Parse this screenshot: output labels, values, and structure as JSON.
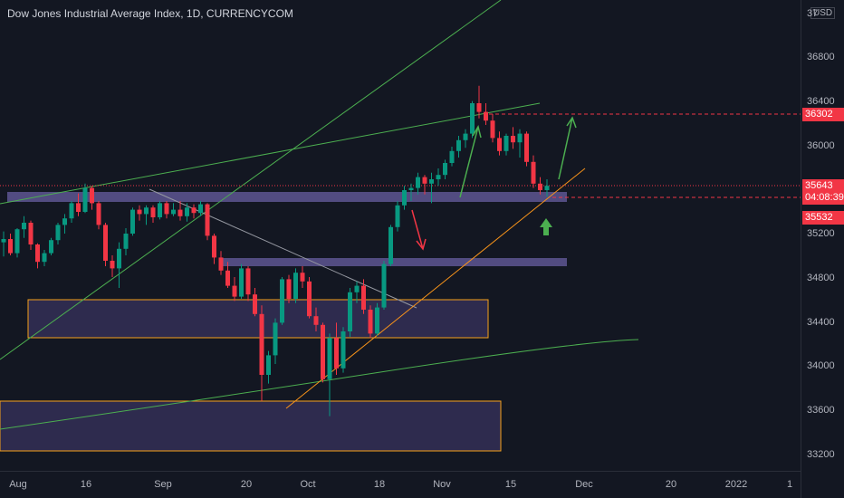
{
  "title": "Dow Jones Industrial Average Index, 1D, CURRENCYCOM",
  "currency": "USD",
  "price_axis": {
    "labels": [
      "37",
      "36800",
      "36400",
      "36000",
      "35600",
      "35200",
      "34800",
      "34400",
      "34000",
      "33600",
      "33200"
    ]
  },
  "price_tags": {
    "target": "36302",
    "current_price": "35643",
    "countdown": "04:08:39",
    "support": "35532"
  },
  "time_axis": {
    "labels": [
      "Aug",
      "16",
      "Sep",
      "20",
      "Oct",
      "18",
      "Nov",
      "15",
      "Dec",
      "20",
      "2022",
      "1"
    ]
  },
  "colors": {
    "background": "#131722",
    "up_candle": "#089981",
    "down_candle": "#f23645",
    "zone_fill": "#4a3f7a",
    "zone_border": "#f7a21b",
    "trendline_green": "#4caf50",
    "trendline_orange": "#f7931a",
    "arrow_red": "#f23645",
    "arrow_green": "#4caf50"
  },
  "chart_data": {
    "type": "candlestick",
    "title": "Dow Jones Industrial Average Index, 1D, CURRENCYCOM",
    "y_axis": {
      "ticks": [
        33200,
        33600,
        34000,
        34400,
        34800,
        35200,
        35600,
        36000,
        36400,
        36800
      ],
      "range": [
        33050,
        37000
      ]
    },
    "x_axis": {
      "ticks": [
        "Aug",
        "16",
        "Sep",
        "20",
        "Oct",
        "18",
        "Nov",
        "15",
        "Dec",
        "20",
        "2022",
        "1"
      ]
    },
    "candles_ohlc": [
      [
        35120,
        35220,
        34990,
        35150
      ],
      [
        35150,
        35200,
        35000,
        35020
      ],
      [
        35020,
        35250,
        34980,
        35240
      ],
      [
        35240,
        35360,
        35160,
        35300
      ],
      [
        35300,
        35320,
        35050,
        35100
      ],
      [
        35100,
        35110,
        34880,
        34940
      ],
      [
        34940,
        35050,
        34900,
        35020
      ],
      [
        35020,
        35160,
        35000,
        35140
      ],
      [
        35140,
        35300,
        35100,
        35280
      ],
      [
        35280,
        35380,
        35200,
        35340
      ],
      [
        35340,
        35500,
        35300,
        35480
      ],
      [
        35480,
        35570,
        35360,
        35400
      ],
      [
        35400,
        35660,
        35390,
        35620
      ],
      [
        35620,
        35640,
        35420,
        35480
      ],
      [
        35480,
        35500,
        35240,
        35280
      ],
      [
        35280,
        35300,
        34900,
        34950
      ],
      [
        34950,
        35000,
        34800,
        34880
      ],
      [
        34880,
        35120,
        34700,
        35060
      ],
      [
        35060,
        35250,
        35000,
        35200
      ],
      [
        35200,
        35440,
        35180,
        35420
      ],
      [
        35420,
        35460,
        35320,
        35380
      ],
      [
        35380,
        35460,
        35280,
        35440
      ],
      [
        35440,
        35460,
        35300,
        35350
      ],
      [
        35350,
        35500,
        35330,
        35480
      ],
      [
        35480,
        35500,
        35340,
        35380
      ],
      [
        35380,
        35480,
        35360,
        35420
      ],
      [
        35420,
        35500,
        35320,
        35360
      ],
      [
        35360,
        35480,
        35310,
        35440
      ],
      [
        35440,
        35470,
        35340,
        35390
      ],
      [
        35390,
        35500,
        35360,
        35470
      ],
      [
        35470,
        35480,
        35140,
        35180
      ],
      [
        35180,
        35200,
        34920,
        34980
      ],
      [
        34980,
        35040,
        34820,
        34860
      ],
      [
        34860,
        34940,
        34700,
        34720
      ],
      [
        34720,
        34800,
        34580,
        34620
      ],
      [
        34620,
        34920,
        34600,
        34880
      ],
      [
        34880,
        34900,
        34580,
        34640
      ],
      [
        34640,
        34700,
        34440,
        34460
      ],
      [
        34460,
        34540,
        33660,
        33900
      ],
      [
        33900,
        34120,
        33820,
        34080
      ],
      [
        34080,
        34420,
        34000,
        34380
      ],
      [
        34380,
        34800,
        34360,
        34780
      ],
      [
        34780,
        34820,
        34560,
        34600
      ],
      [
        34600,
        34880,
        34560,
        34840
      ],
      [
        34840,
        34900,
        34700,
        34760
      ],
      [
        34760,
        34800,
        34420,
        34440
      ],
      [
        34440,
        34520,
        34300,
        34360
      ],
      [
        34360,
        34380,
        33830,
        33860
      ],
      [
        33860,
        34280,
        33520,
        34240
      ],
      [
        34240,
        34380,
        33900,
        33960
      ],
      [
        33960,
        34340,
        33920,
        34300
      ],
      [
        34300,
        34700,
        34250,
        34660
      ],
      [
        34660,
        34760,
        34560,
        34720
      ],
      [
        34720,
        34780,
        34460,
        34500
      ],
      [
        34500,
        34540,
        34240,
        34280
      ],
      [
        34280,
        34560,
        34260,
        34520
      ],
      [
        34520,
        34950,
        34500,
        34920
      ],
      [
        34920,
        35280,
        34900,
        35260
      ],
      [
        35260,
        35500,
        35220,
        35460
      ],
      [
        35460,
        35640,
        35420,
        35600
      ],
      [
        35600,
        35660,
        35500,
        35620
      ],
      [
        35620,
        35760,
        35560,
        35720
      ],
      [
        35720,
        35740,
        35560,
        35660
      ],
      [
        35660,
        35760,
        35480,
        35700
      ],
      [
        35700,
        35800,
        35640,
        35740
      ],
      [
        35740,
        35880,
        35700,
        35850
      ],
      [
        35850,
        36000,
        35820,
        35960
      ],
      [
        35960,
        36100,
        35900,
        36060
      ],
      [
        36060,
        36160,
        35990,
        36120
      ],
      [
        36120,
        36420,
        36080,
        36400
      ],
      [
        36400,
        36560,
        36260,
        36320
      ],
      [
        36320,
        36400,
        36200,
        36240
      ],
      [
        36240,
        36300,
        36040,
        36080
      ],
      [
        36080,
        36140,
        35920,
        35960
      ],
      [
        35960,
        36120,
        35920,
        36100
      ],
      [
        36100,
        36180,
        35980,
        36040
      ],
      [
        36040,
        36160,
        35900,
        36120
      ],
      [
        36120,
        36140,
        35820,
        35860
      ],
      [
        35860,
        35920,
        35620,
        35660
      ],
      [
        35660,
        35720,
        35560,
        35600
      ],
      [
        35600,
        35700,
        35540,
        35640
      ]
    ]
  }
}
